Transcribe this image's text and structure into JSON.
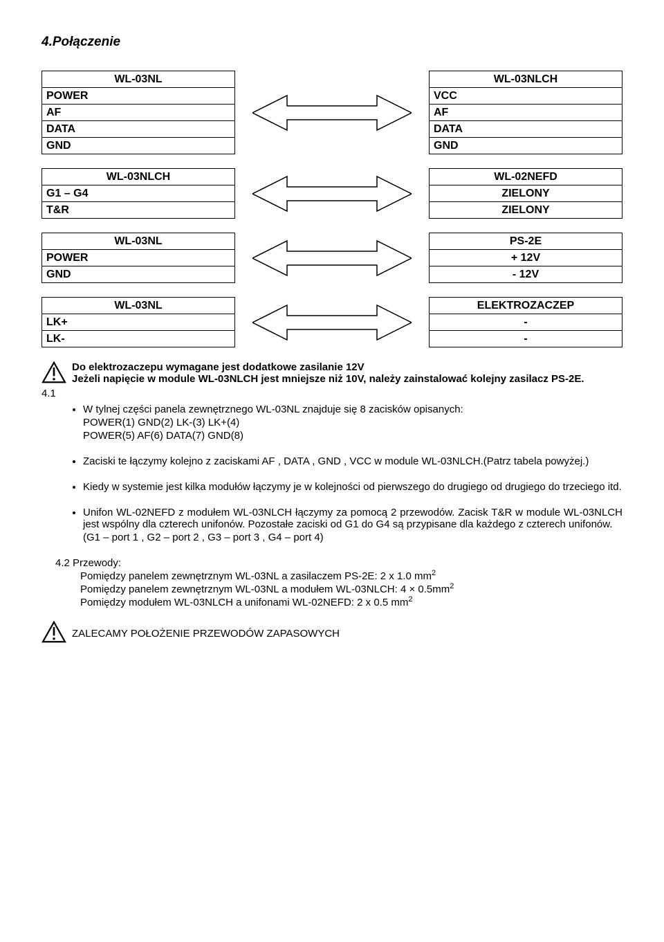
{
  "heading": "4.Połączenie",
  "pairs": [
    {
      "left": {
        "header": "WL-03NL",
        "rows": [
          "POWER",
          "AF",
          "DATA",
          "GND"
        ]
      },
      "right": {
        "header": "WL-03NLCH",
        "rows": [
          "VCC",
          "AF",
          "DATA",
          "GND"
        ],
        "align": "left"
      }
    },
    {
      "left": {
        "header": "WL-03NLCH",
        "rows": [
          "G1 – G4",
          "T&R"
        ]
      },
      "right": {
        "header": "WL-02NEFD",
        "rows": [
          "ZIELONY",
          "ZIELONY"
        ],
        "align": "center"
      }
    },
    {
      "left": {
        "header": "WL-03NL",
        "rows": [
          "POWER",
          "GND"
        ]
      },
      "right": {
        "header": "PS-2E",
        "rows": [
          "+ 12V",
          "- 12V"
        ],
        "align": "center"
      }
    },
    {
      "left": {
        "header": "WL-03NL",
        "rows": [
          "LK+",
          "LK-"
        ]
      },
      "right": {
        "header": "ELEKTROZACZEP",
        "rows": [
          "-",
          "-"
        ],
        "align": "center"
      }
    }
  ],
  "warning_lines": [
    "Do elektrozaczepu wymagane jest dodatkowe zasilanie 12V",
    "Jeżeli napięcie w module WL-03NLCH jest mniejsze niż 10V, należy zainstalować kolejny zasilacz PS-2E."
  ],
  "index41": "4.1",
  "bullets": [
    {
      "lines": [
        "W tylnej części panela zewnętrznego WL-03NL znajduje się 8 zacisków opisanych:",
        "POWER(1) GND(2) LK-(3) LK+(4)",
        "POWER(5) AF(6) DATA(7) GND(8)"
      ]
    },
    {
      "lines": [
        "Zaciski te łączymy kolejno z zaciskami AF , DATA , GND , VCC w module WL-03NLCH.(Patrz tabela powyżej.)"
      ]
    },
    {
      "lines": [
        "Kiedy w systemie jest kilka modułów łączymy je w kolejności od pierwszego do drugiego od drugiego do trzeciego itd."
      ]
    },
    {
      "lines": [
        "Unifon WL-02NEFD z modułem WL-03NLCH łączymy za pomocą 2 przewodów. Zacisk T&R w module WL-03NLCH jest wspólny dla czterech unifonów. Pozostałe zaciski od G1 do G4 są przypisane dla każdego z czterech unifonów.",
        " (G1 – port 1 , G2 – port 2 , G3 – port 3 , G4 – port 4)"
      ]
    }
  ],
  "section42_label": "4.2  Przewody:",
  "section42_lines": [
    {
      "text": "Pomiędzy panelem zewnętrznym WL-03NL a zasilaczem PS-2E: 2 x 1.0 mm",
      "sup": "2"
    },
    {
      "text": "Pomiędzy panelem zewnętrznym WL-03NL a modułem WL-03NLCH: 4 × 0.5mm",
      "sup": "2"
    },
    {
      "text": "Pomiędzy modułem WL-03NLCH a unifonami WL-02NEFD: 2 x 0.5 mm",
      "sup": "2"
    }
  ],
  "final_note": "ZALECAMY POŁOŻENIE PRZEWODÓW ZAPASOWYCH",
  "colors": {
    "text": "#000000",
    "border": "#000000",
    "bg": "#ffffff"
  }
}
